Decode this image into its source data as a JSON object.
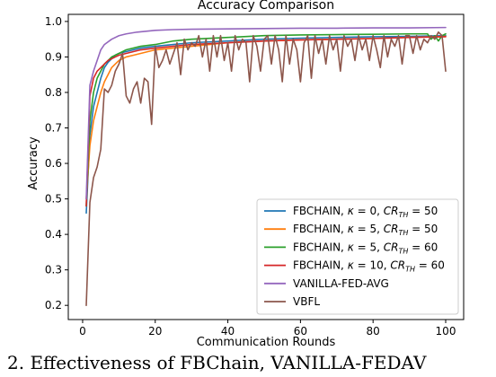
{
  "chart_data": {
    "type": "line",
    "title": "Accuracy Comparison",
    "xlabel": "Communication Rounds",
    "ylabel": "Accuracy",
    "xlim": [
      -3.95,
      104.95
    ],
    "ylim": [
      0.16,
      1.02
    ],
    "xticks": [
      0,
      20,
      40,
      60,
      80,
      100
    ],
    "yticks": [
      0.2,
      0.3,
      0.4,
      0.5,
      0.6,
      0.7,
      0.8,
      0.9,
      1.0
    ],
    "ytick_labels": [
      "0.2",
      "0.3",
      "0.4",
      "0.5",
      "0.6",
      "0.7",
      "0.8",
      "0.9",
      "1.0"
    ],
    "grid": false,
    "legend_position": "lower right",
    "series": [
      {
        "name": "FBCHAIN, κ = 0, CR_TH = 50",
        "legend_label": {
          "pre": "FBCHAIN, ",
          "kappa": "κ",
          "kappa_val": " = 0, ",
          "cr": "CR",
          "sub": "TH",
          "cr_val": " = 50"
        },
        "color": "#1f77b4",
        "x": [
          1,
          2,
          3,
          4,
          5,
          6,
          7,
          8,
          9,
          10,
          12,
          14,
          16,
          20,
          25,
          30,
          40,
          50,
          60,
          70,
          80,
          90,
          100
        ],
        "y": [
          0.46,
          0.68,
          0.76,
          0.8,
          0.84,
          0.87,
          0.885,
          0.895,
          0.905,
          0.91,
          0.915,
          0.92,
          0.925,
          0.93,
          0.935,
          0.94,
          0.945,
          0.95,
          0.953,
          0.955,
          0.957,
          0.958,
          0.96
        ]
      },
      {
        "name": "FBCHAIN, κ = 5, CR_TH = 50",
        "legend_label": {
          "pre": "FBCHAIN, ",
          "kappa": "κ",
          "kappa_val": " = 5, ",
          "cr": "CR",
          "sub": "TH",
          "cr_val": " = 50"
        },
        "color": "#ff7f0e",
        "x": [
          1,
          2,
          3,
          4,
          5,
          6,
          7,
          8,
          9,
          10,
          12,
          14,
          16,
          20,
          25,
          30,
          40,
          50,
          60,
          70,
          80,
          90,
          100
        ],
        "y": [
          0.5,
          0.65,
          0.72,
          0.76,
          0.8,
          0.83,
          0.85,
          0.87,
          0.88,
          0.89,
          0.9,
          0.905,
          0.91,
          0.92,
          0.925,
          0.93,
          0.94,
          0.945,
          0.948,
          0.95,
          0.952,
          0.955,
          0.958
        ]
      },
      {
        "name": "FBCHAIN, κ = 5, CR_TH = 60",
        "legend_label": {
          "pre": "FBCHAIN, ",
          "kappa": "κ",
          "kappa_val": " = 5, ",
          "cr": "CR",
          "sub": "TH",
          "cr_val": " = 60"
        },
        "color": "#2ca02c",
        "x": [
          1,
          2,
          3,
          4,
          5,
          6,
          7,
          8,
          9,
          10,
          12,
          14,
          16,
          20,
          25,
          30,
          40,
          50,
          60,
          70,
          80,
          90,
          95,
          96,
          97,
          98,
          99,
          100
        ],
        "y": [
          0.48,
          0.72,
          0.8,
          0.84,
          0.86,
          0.88,
          0.89,
          0.9,
          0.905,
          0.91,
          0.92,
          0.925,
          0.93,
          0.935,
          0.945,
          0.95,
          0.955,
          0.96,
          0.962,
          0.963,
          0.964,
          0.965,
          0.965,
          0.95,
          0.96,
          0.945,
          0.96,
          0.965
        ]
      },
      {
        "name": "FBCHAIN, κ = 10, CR_TH = 60",
        "legend_label": {
          "pre": "FBCHAIN, ",
          "kappa": "κ",
          "kappa_val": " = 10, ",
          "cr": "CR",
          "sub": "TH",
          "cr_val": " = 60"
        },
        "color": "#d62728",
        "x": [
          1,
          2,
          3,
          4,
          5,
          6,
          7,
          8,
          9,
          10,
          12,
          14,
          16,
          20,
          25,
          30,
          40,
          50,
          60,
          70,
          80,
          90,
          100
        ],
        "y": [
          0.48,
          0.79,
          0.84,
          0.86,
          0.87,
          0.88,
          0.89,
          0.895,
          0.9,
          0.905,
          0.91,
          0.915,
          0.92,
          0.925,
          0.93,
          0.935,
          0.94,
          0.945,
          0.948,
          0.95,
          0.952,
          0.955,
          0.957
        ]
      },
      {
        "name": "VANILLA-FED-AVG",
        "legend_label": {
          "plain": "VANILLA-FED-AVG"
        },
        "color": "#9467bd",
        "x": [
          1,
          2,
          3,
          4,
          5,
          6,
          8,
          10,
          12,
          15,
          20,
          25,
          30,
          40,
          50,
          60,
          70,
          80,
          90,
          100
        ],
        "y": [
          0.5,
          0.82,
          0.86,
          0.89,
          0.92,
          0.935,
          0.95,
          0.96,
          0.965,
          0.97,
          0.975,
          0.977,
          0.978,
          0.979,
          0.98,
          0.981,
          0.981,
          0.982,
          0.982,
          0.983
        ]
      },
      {
        "name": "VBFL",
        "legend_label": {
          "plain": "VBFL"
        },
        "color": "#8c564b",
        "x": [
          1,
          2,
          3,
          4,
          5,
          6,
          7,
          8,
          9,
          10,
          11,
          12,
          13,
          14,
          15,
          16,
          17,
          18,
          19,
          20,
          21,
          22,
          23,
          24,
          25,
          26,
          27,
          28,
          29,
          30,
          31,
          32,
          33,
          34,
          35,
          36,
          37,
          38,
          39,
          40,
          41,
          42,
          43,
          44,
          45,
          46,
          47,
          48,
          49,
          50,
          51,
          52,
          53,
          54,
          55,
          56,
          57,
          58,
          59,
          60,
          61,
          62,
          63,
          64,
          65,
          66,
          67,
          68,
          69,
          70,
          71,
          72,
          73,
          74,
          75,
          76,
          77,
          78,
          79,
          80,
          81,
          82,
          83,
          84,
          85,
          86,
          87,
          88,
          89,
          90,
          91,
          92,
          93,
          94,
          95,
          96,
          97,
          98,
          99,
          100
        ],
        "y": [
          0.2,
          0.49,
          0.56,
          0.59,
          0.64,
          0.81,
          0.8,
          0.82,
          0.86,
          0.88,
          0.91,
          0.79,
          0.77,
          0.81,
          0.83,
          0.77,
          0.84,
          0.83,
          0.71,
          0.93,
          0.87,
          0.89,
          0.92,
          0.88,
          0.91,
          0.94,
          0.85,
          0.95,
          0.92,
          0.94,
          0.93,
          0.96,
          0.9,
          0.95,
          0.86,
          0.96,
          0.9,
          0.96,
          0.89,
          0.94,
          0.86,
          0.96,
          0.92,
          0.95,
          0.94,
          0.83,
          0.96,
          0.93,
          0.86,
          0.95,
          0.96,
          0.88,
          0.96,
          0.92,
          0.83,
          0.96,
          0.88,
          0.95,
          0.92,
          0.83,
          0.94,
          0.96,
          0.84,
          0.96,
          0.91,
          0.95,
          0.88,
          0.96,
          0.92,
          0.95,
          0.86,
          0.96,
          0.93,
          0.95,
          0.89,
          0.96,
          0.92,
          0.95,
          0.89,
          0.96,
          0.92,
          0.87,
          0.96,
          0.9,
          0.95,
          0.93,
          0.96,
          0.88,
          0.96,
          0.96,
          0.91,
          0.96,
          0.92,
          0.95,
          0.94,
          0.96,
          0.95,
          0.97,
          0.96,
          0.86
        ]
      }
    ]
  },
  "caption": "2.  Effectiveness of FBChain,  VANILLA-FEDAV"
}
